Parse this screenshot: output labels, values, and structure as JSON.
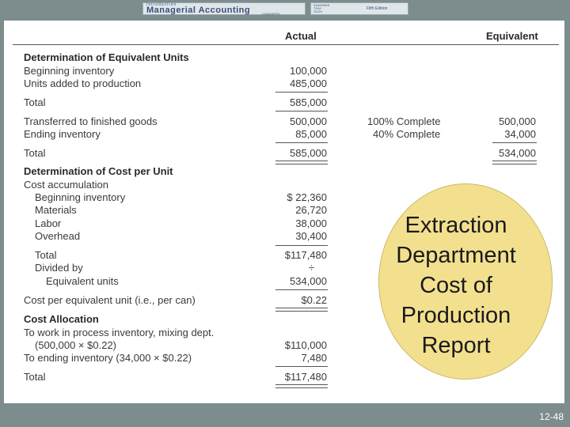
{
  "banner": {
    "small": "Introduction",
    "title": "Managerial Accounting",
    "sub": "CONCEPTS",
    "authors": [
      "EDMONDS",
      "TSAY",
      "OLDS"
    ],
    "edition": "Fifth Edition"
  },
  "headers": {
    "actual": "Actual",
    "equivalent": "Equivalent"
  },
  "sec1": {
    "title": "Determination of Equivalent Units",
    "beginning_label": "Beginning inventory",
    "beginning_val": "100,000",
    "added_label": "Units added to production",
    "added_val": "485,000",
    "total_label": "Total",
    "total_val": "585,000",
    "transferred_label": "Transferred to finished goods",
    "transferred_val": "500,000",
    "transferred_pct": "100% Complete",
    "transferred_eq": "500,000",
    "ending_label": "Ending inventory",
    "ending_val": "85,000",
    "ending_pct": "40% Complete",
    "ending_eq": "34,000",
    "total2_label": "Total",
    "total2_val": "585,000",
    "total2_eq": "534,000"
  },
  "sec2": {
    "title": "Determination of Cost per Unit",
    "cost_acc": "Cost accumulation",
    "beginning_label": "Beginning inventory",
    "beginning_val": "$  22,360",
    "materials_label": "Materials",
    "materials_val": "26,720",
    "labor_label": "Labor",
    "labor_val": "38,000",
    "overhead_label": "Overhead",
    "overhead_val": "30,400",
    "total_label": "Total",
    "total_val": "$117,480",
    "divided_label": "Divided by",
    "divided_sym": "÷",
    "equiv_label": "Equivalent units",
    "equiv_val": "534,000",
    "cpu_label": "Cost per equivalent unit (i.e., per can)",
    "cpu_val": "$0.22"
  },
  "sec3": {
    "title": "Cost Allocation",
    "wip_label": "To work in process inventory, mixing dept.",
    "wip_calc": "(500,000 × $0.22)",
    "wip_val": "$110,000",
    "ending_label": "To ending inventory (34,000 × $0.22)",
    "ending_val": "7,480",
    "total_label": "Total",
    "total_val": "$117,480"
  },
  "callout": [
    "Extraction",
    "Department",
    "Cost of",
    "Production",
    "Report"
  ],
  "page_number": "12-48",
  "colors": {
    "background": "#7d8c8c",
    "callout": "#f3e08f"
  }
}
